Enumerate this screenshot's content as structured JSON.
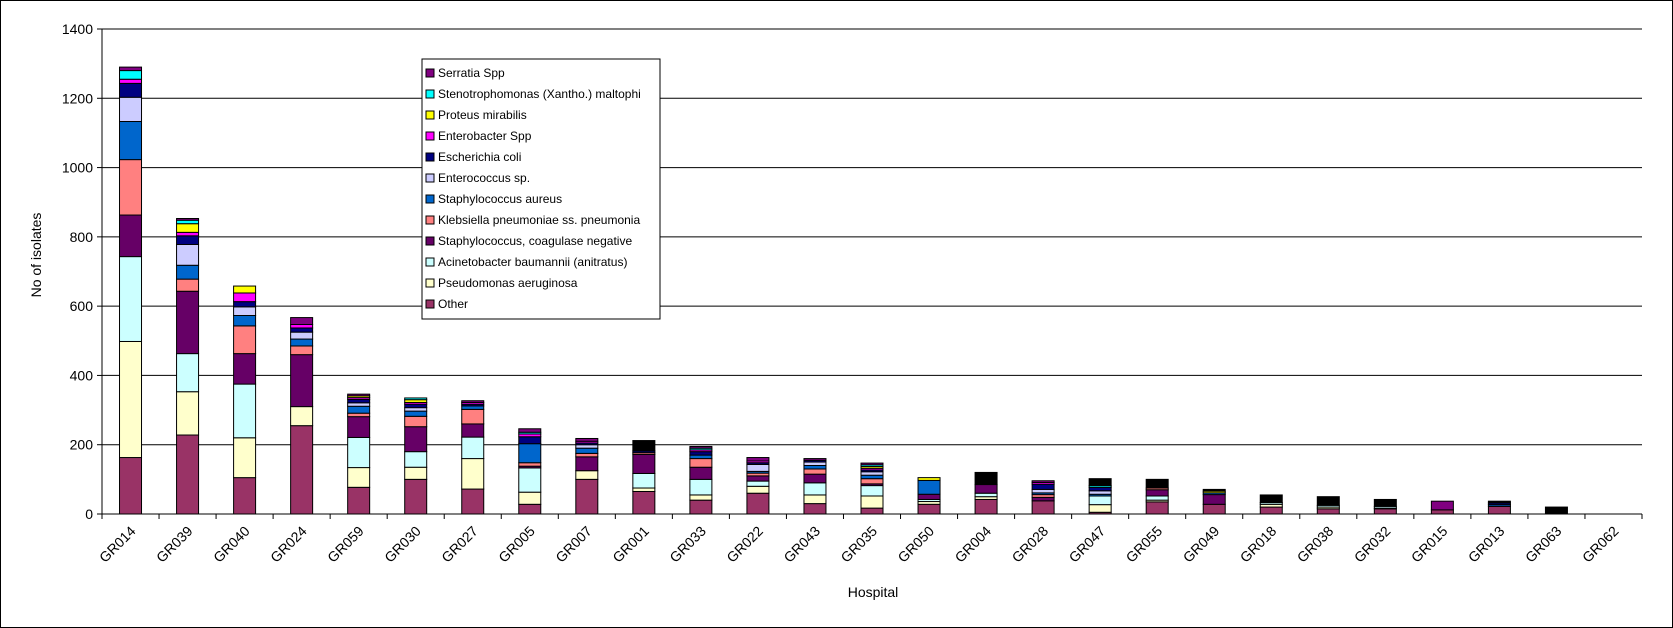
{
  "chart_data": {
    "type": "bar",
    "stacked": true,
    "title": "",
    "xlabel": "Hospital",
    "ylabel": "No of isolates",
    "ylim": [
      0,
      1400
    ],
    "yticks": [
      0,
      200,
      400,
      600,
      800,
      1000,
      1200,
      1400
    ],
    "grid": "horizontal",
    "legend_position": "upper-left inside plot",
    "categories": [
      "GR014",
      "GR039",
      "GR040",
      "GR024",
      "GR059",
      "GR030",
      "GR027",
      "GR005",
      "GR007",
      "GR001",
      "GR033",
      "GR022",
      "GR043",
      "GR035",
      "GR050",
      "GR004",
      "GR028",
      "GR047",
      "GR055",
      "GR049",
      "GR018",
      "GR038",
      "GR032",
      "GR015",
      "GR013",
      "GR063",
      "GR062"
    ],
    "series": [
      {
        "name": "Other",
        "color": "#993366",
        "values": [
          163,
          228,
          105,
          255,
          77,
          100,
          72,
          28,
          100,
          65,
          40,
          60,
          30,
          17,
          28,
          42,
          38,
          5,
          35,
          28,
          20,
          15,
          15,
          12,
          22,
          0,
          0
        ]
      },
      {
        "name": "Pseudomonas aeruginosa",
        "color": "#FFFFCC",
        "values": [
          335,
          125,
          115,
          55,
          57,
          35,
          88,
          35,
          25,
          10,
          15,
          20,
          25,
          35,
          8,
          8,
          0,
          22,
          5,
          0,
          8,
          5,
          2,
          0,
          0,
          0,
          0
        ]
      },
      {
        "name": "Acinetobacter baumannii (anitratus)",
        "color": "#CCFFFF",
        "values": [
          245,
          110,
          155,
          0,
          87,
          45,
          62,
          70,
          0,
          42,
          45,
          15,
          35,
          30,
          6,
          10,
          0,
          25,
          12,
          0,
          5,
          5,
          5,
          0,
          0,
          0,
          0
        ]
      },
      {
        "name": "Staphylococcus, coagulase negative",
        "color": "#660066",
        "values": [
          120,
          180,
          88,
          150,
          60,
          72,
          38,
          5,
          40,
          55,
          35,
          15,
          25,
          5,
          15,
          25,
          10,
          0,
          18,
          28,
          0,
          0,
          0,
          0,
          0,
          0,
          0
        ]
      },
      {
        "name": "Klebsiella pneumoniae ss. pneumonia",
        "color": "#FF8080",
        "values": [
          160,
          35,
          80,
          25,
          10,
          30,
          42,
          10,
          10,
          5,
          25,
          8,
          15,
          15,
          0,
          0,
          8,
          0,
          5,
          0,
          0,
          0,
          0,
          0,
          0,
          0,
          0
        ]
      },
      {
        "name": "Staphylococcus aureus",
        "color": "#0066CC",
        "values": [
          110,
          40,
          30,
          20,
          20,
          15,
          10,
          55,
          15,
          0,
          10,
          5,
          10,
          10,
          40,
          0,
          5,
          5,
          0,
          5,
          0,
          0,
          0,
          0,
          5,
          0,
          0
        ]
      },
      {
        "name": "Enterococcus sp.",
        "color": "#CCCCFF",
        "values": [
          70,
          60,
          25,
          20,
          10,
          10,
          0,
          0,
          10,
          0,
          0,
          20,
          10,
          10,
          0,
          0,
          10,
          10,
          0,
          0,
          0,
          0,
          0,
          0,
          0,
          0,
          0
        ]
      },
      {
        "name": "Escherichia coli",
        "color": "#000080",
        "values": [
          40,
          25,
          15,
          12,
          10,
          10,
          5,
          20,
          5,
          5,
          10,
          5,
          5,
          5,
          0,
          0,
          15,
          10,
          0,
          0,
          0,
          0,
          0,
          0,
          5,
          0,
          0
        ]
      },
      {
        "name": "Enterobacter Spp",
        "color": "#FF00FF",
        "values": [
          12,
          10,
          25,
          10,
          5,
          5,
          5,
          8,
          5,
          0,
          5,
          5,
          0,
          5,
          0,
          0,
          5,
          0,
          0,
          0,
          0,
          0,
          0,
          0,
          0,
          0,
          0
        ]
      },
      {
        "name": "Proteus mirabilis",
        "color": "#FFFF00",
        "values": [
          0,
          25,
          20,
          0,
          5,
          8,
          0,
          0,
          0,
          0,
          0,
          0,
          0,
          5,
          8,
          0,
          0,
          0,
          0,
          5,
          0,
          0,
          0,
          0,
          0,
          0,
          0
        ]
      },
      {
        "name": "Stenotrophomonas (Xantho.) maltophi",
        "color": "#00FFFF",
        "values": [
          25,
          10,
          0,
          0,
          0,
          5,
          0,
          5,
          0,
          0,
          5,
          0,
          0,
          5,
          0,
          0,
          0,
          5,
          0,
          0,
          0,
          0,
          0,
          0,
          0,
          0,
          0
        ]
      },
      {
        "name": "Serratia Spp",
        "color": "#800080",
        "values": [
          10,
          5,
          0,
          20,
          5,
          0,
          5,
          10,
          8,
          0,
          5,
          10,
          5,
          5,
          0,
          0,
          5,
          0,
          0,
          0,
          0,
          0,
          0,
          25,
          0,
          0,
          0
        ]
      },
      {
        "name": "",
        "color": "#000000",
        "values": [
          0,
          0,
          0,
          0,
          0,
          0,
          0,
          0,
          0,
          30,
          0,
          0,
          0,
          0,
          0,
          35,
          0,
          20,
          25,
          5,
          22,
          25,
          20,
          0,
          5,
          20,
          0
        ]
      }
    ]
  }
}
